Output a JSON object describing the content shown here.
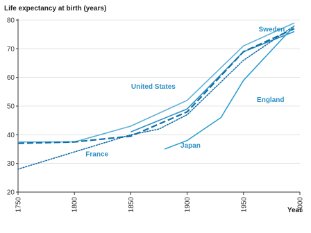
{
  "chart_data": {
    "type": "line",
    "ylabel": "Life expectancy at birth (years)",
    "xlabel": "Year",
    "xlim": [
      1750,
      2000
    ],
    "ylim": [
      20,
      80
    ],
    "xticks": [
      "1750",
      "1800",
      "1850",
      "1900",
      "1950",
      "2000"
    ],
    "yticks": [
      "20",
      "30",
      "40",
      "50",
      "60",
      "70",
      "80"
    ],
    "grid": "horizontal",
    "series": [
      {
        "name": "Sweden",
        "color": "#5fb0d8",
        "style": "solid",
        "points": [
          [
            1750,
            37.5
          ],
          [
            1800,
            37.5
          ],
          [
            1850,
            43
          ],
          [
            1900,
            52
          ],
          [
            1950,
            71
          ],
          [
            1995,
            79
          ]
        ]
      },
      {
        "name": "United States",
        "color": "#2b8fc4",
        "style": "solid",
        "points": [
          [
            1850,
            41
          ],
          [
            1900,
            49
          ],
          [
            1950,
            69
          ],
          [
            1995,
            76
          ]
        ]
      },
      {
        "name": "England",
        "color": "#0f6ea8",
        "style": "dashed",
        "points": [
          [
            1750,
            37
          ],
          [
            1800,
            37.5
          ],
          [
            1850,
            39.5
          ],
          [
            1900,
            48
          ],
          [
            1950,
            69
          ],
          [
            1995,
            77
          ]
        ]
      },
      {
        "name": "France",
        "color": "#0f6ea8",
        "style": "dotted",
        "points": [
          [
            1750,
            28
          ],
          [
            1800,
            34
          ],
          [
            1850,
            40
          ],
          [
            1875,
            42
          ],
          [
            1900,
            47
          ],
          [
            1950,
            66
          ],
          [
            1995,
            78
          ]
        ]
      },
      {
        "name": "Japan",
        "color": "#2b9ed0",
        "style": "solid",
        "points": [
          [
            1880,
            35
          ],
          [
            1900,
            38
          ],
          [
            1930,
            46
          ],
          [
            1950,
            59
          ],
          [
            1995,
            78
          ]
        ]
      }
    ],
    "labels": [
      {
        "text": "Sweden",
        "x": 1975,
        "y": 76,
        "color": "#2b8fc4"
      },
      {
        "text": "United States",
        "x": 1870,
        "y": 56,
        "color": "#2b8fc4"
      },
      {
        "text": "England",
        "x": 1974,
        "y": 51.5,
        "color": "#2b8fc4"
      },
      {
        "text": "France",
        "x": 1820,
        "y": 32.5,
        "color": "#2b8fc4"
      },
      {
        "text": "Japan",
        "x": 1903,
        "y": 35.5,
        "color": "#2b8fc4"
      }
    ]
  }
}
